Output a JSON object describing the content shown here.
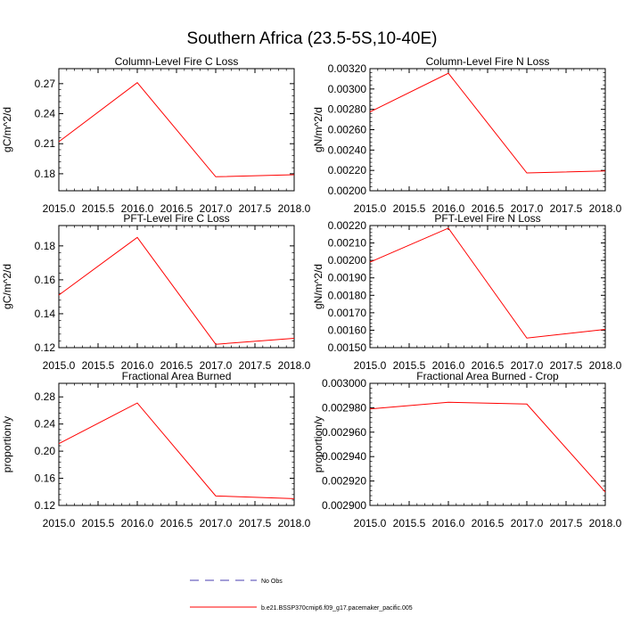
{
  "figure_title": "Southern Africa (23.5-5S,10-40E)",
  "legend": {
    "entries": [
      {
        "label": "No Obs",
        "style": "dashed",
        "color": "#4a3fb0"
      },
      {
        "label": "b.e21.BSSP370cmip6.f09_g17.pacemaker_pacific.005",
        "style": "solid",
        "color": "#ff0000"
      }
    ]
  },
  "chart_data": [
    {
      "type": "line",
      "title": "Column-Level Fire C Loss",
      "xlabel": "",
      "ylabel": "gC/m^2/d",
      "x": [
        2015,
        2016,
        2017,
        2018
      ],
      "series": [
        {
          "name": "b.e21.BSSP370cmip6.f09_g17.pacemaker_pacific.005",
          "color": "#ff0000",
          "values": [
            0.212,
            0.271,
            0.177,
            0.179
          ]
        }
      ],
      "xlim": [
        2015,
        2018
      ],
      "ylim": [
        0.163,
        0.285
      ],
      "xticks": [
        2015,
        2015.5,
        2016,
        2016.5,
        2017,
        2017.5,
        2018
      ],
      "xtick_labels": [
        "2015.0",
        "2015.5",
        "2016.0",
        "2016.5",
        "2017.0",
        "2017.5",
        "2018.0"
      ],
      "yticks": [
        0.18,
        0.21,
        0.24,
        0.27
      ],
      "ytick_labels": [
        "0.18",
        "0.21",
        "0.24",
        "0.27"
      ]
    },
    {
      "type": "line",
      "title": "Column-Level Fire N Loss",
      "xlabel": "",
      "ylabel": "gN/m^2/d",
      "x": [
        2015,
        2016,
        2017,
        2018
      ],
      "series": [
        {
          "name": "b.e21.BSSP370cmip6.f09_g17.pacemaker_pacific.005",
          "color": "#ff0000",
          "values": [
            0.002775,
            0.003155,
            0.002175,
            0.002195
          ]
        }
      ],
      "xlim": [
        2015,
        2018
      ],
      "ylim": [
        0.002,
        0.0032
      ],
      "xticks": [
        2015,
        2015.5,
        2016,
        2016.5,
        2017,
        2017.5,
        2018
      ],
      "xtick_labels": [
        "2015.0",
        "2015.5",
        "2016.0",
        "2016.5",
        "2017.0",
        "2017.5",
        "2018.0"
      ],
      "yticks": [
        0.002,
        0.0022,
        0.0024,
        0.0026,
        0.0028,
        0.003,
        0.0032
      ],
      "ytick_labels": [
        "0.00200",
        "0.00220",
        "0.00240",
        "0.00260",
        "0.00280",
        "0.00300",
        "0.00320"
      ]
    },
    {
      "type": "line",
      "title": "PFT-Level Fire C Loss",
      "xlabel": "",
      "ylabel": "gC/m^2/d",
      "x": [
        2015,
        2016,
        2017,
        2018
      ],
      "series": [
        {
          "name": "b.e21.BSSP370cmip6.f09_g17.pacemaker_pacific.005",
          "color": "#ff0000",
          "values": [
            0.151,
            0.185,
            0.122,
            0.1255
          ]
        }
      ],
      "xlim": [
        2015,
        2018
      ],
      "ylim": [
        0.12,
        0.192
      ],
      "xticks": [
        2015,
        2015.5,
        2016,
        2016.5,
        2017,
        2017.5,
        2018
      ],
      "xtick_labels": [
        "2015.0",
        "2015.5",
        "2016.0",
        "2016.5",
        "2017.0",
        "2017.5",
        "2018.0"
      ],
      "yticks": [
        0.12,
        0.14,
        0.16,
        0.18
      ],
      "ytick_labels": [
        "0.12",
        "0.14",
        "0.16",
        "0.18"
      ]
    },
    {
      "type": "line",
      "title": "PFT-Level Fire N Loss",
      "xlabel": "",
      "ylabel": "gN/m^2/d",
      "x": [
        2015,
        2016,
        2017,
        2018
      ],
      "series": [
        {
          "name": "b.e21.BSSP370cmip6.f09_g17.pacemaker_pacific.005",
          "color": "#ff0000",
          "values": [
            0.00199,
            0.002185,
            0.001555,
            0.001605
          ]
        }
      ],
      "xlim": [
        2015,
        2018
      ],
      "ylim": [
        0.0015,
        0.0022
      ],
      "xticks": [
        2015,
        2015.5,
        2016,
        2016.5,
        2017,
        2017.5,
        2018
      ],
      "xtick_labels": [
        "2015.0",
        "2015.5",
        "2016.0",
        "2016.5",
        "2017.0",
        "2017.5",
        "2018.0"
      ],
      "yticks": [
        0.0015,
        0.0016,
        0.0017,
        0.0018,
        0.0019,
        0.002,
        0.0021,
        0.0022
      ],
      "ytick_labels": [
        "0.00150",
        "0.00160",
        "0.00170",
        "0.00180",
        "0.00190",
        "0.00200",
        "0.00210",
        "0.00220"
      ]
    },
    {
      "type": "line",
      "title": "Fractional Area Burned",
      "xlabel": "",
      "ylabel": "proportion/y",
      "x": [
        2015,
        2016,
        2017,
        2018
      ],
      "series": [
        {
          "name": "b.e21.BSSP370cmip6.f09_g17.pacemaker_pacific.005",
          "color": "#ff0000",
          "values": [
            0.211,
            0.271,
            0.134,
            0.13
          ]
        }
      ],
      "xlim": [
        2015,
        2018
      ],
      "ylim": [
        0.12,
        0.3
      ],
      "xticks": [
        2015,
        2015.5,
        2016,
        2016.5,
        2017,
        2017.5,
        2018
      ],
      "xtick_labels": [
        "2015.0",
        "2015.5",
        "2016.0",
        "2016.5",
        "2017.0",
        "2017.5",
        "2018.0"
      ],
      "yticks": [
        0.12,
        0.16,
        0.2,
        0.24,
        0.28
      ],
      "ytick_labels": [
        "0.12",
        "0.16",
        "0.20",
        "0.24",
        "0.28"
      ]
    },
    {
      "type": "line",
      "title": "Fractional Area Burned - Crop",
      "xlabel": "",
      "ylabel": "proportion/y",
      "x": [
        2015,
        2016,
        2017,
        2018
      ],
      "series": [
        {
          "name": "b.e21.BSSP370cmip6.f09_g17.pacemaker_pacific.005",
          "color": "#ff0000",
          "values": [
            0.002979,
            0.0029845,
            0.002983,
            0.002911
          ]
        }
      ],
      "xlim": [
        2015,
        2018
      ],
      "ylim": [
        0.0029,
        0.003
      ],
      "xticks": [
        2015,
        2015.5,
        2016,
        2016.5,
        2017,
        2017.5,
        2018
      ],
      "xtick_labels": [
        "2015.0",
        "2015.5",
        "2016.0",
        "2016.5",
        "2017.0",
        "2017.5",
        "2018.0"
      ],
      "yticks": [
        0.0029,
        0.00292,
        0.00294,
        0.00296,
        0.00298,
        0.003
      ],
      "ytick_labels": [
        "0.002900",
        "0.002920",
        "0.002940",
        "0.002960",
        "0.002980",
        "0.003000"
      ]
    }
  ]
}
